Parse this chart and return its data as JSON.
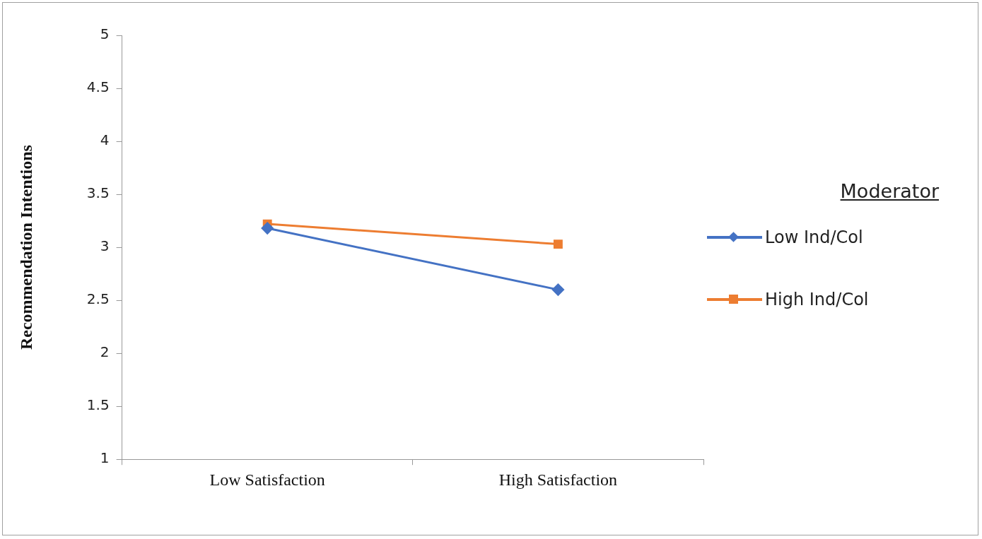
{
  "chart_data": {
    "type": "line",
    "ylabel": "Recommendation Intentions",
    "legend_title": "Moderator",
    "categories": [
      "Low Satisfaction",
      "High Satisfaction"
    ],
    "series": [
      {
        "name": "Low Ind/Col",
        "color": "#4472c4",
        "marker": "diamond",
        "values": [
          3.18,
          2.6
        ]
      },
      {
        "name": "High Ind/Col",
        "color": "#ed7d31",
        "marker": "square",
        "values": [
          3.22,
          3.03
        ]
      }
    ],
    "ylim": [
      1,
      5
    ],
    "yticks": [
      1,
      1.5,
      2,
      2.5,
      3,
      3.5,
      4,
      4.5,
      5
    ],
    "grid": false,
    "legend": "right",
    "line_style": "solid"
  }
}
